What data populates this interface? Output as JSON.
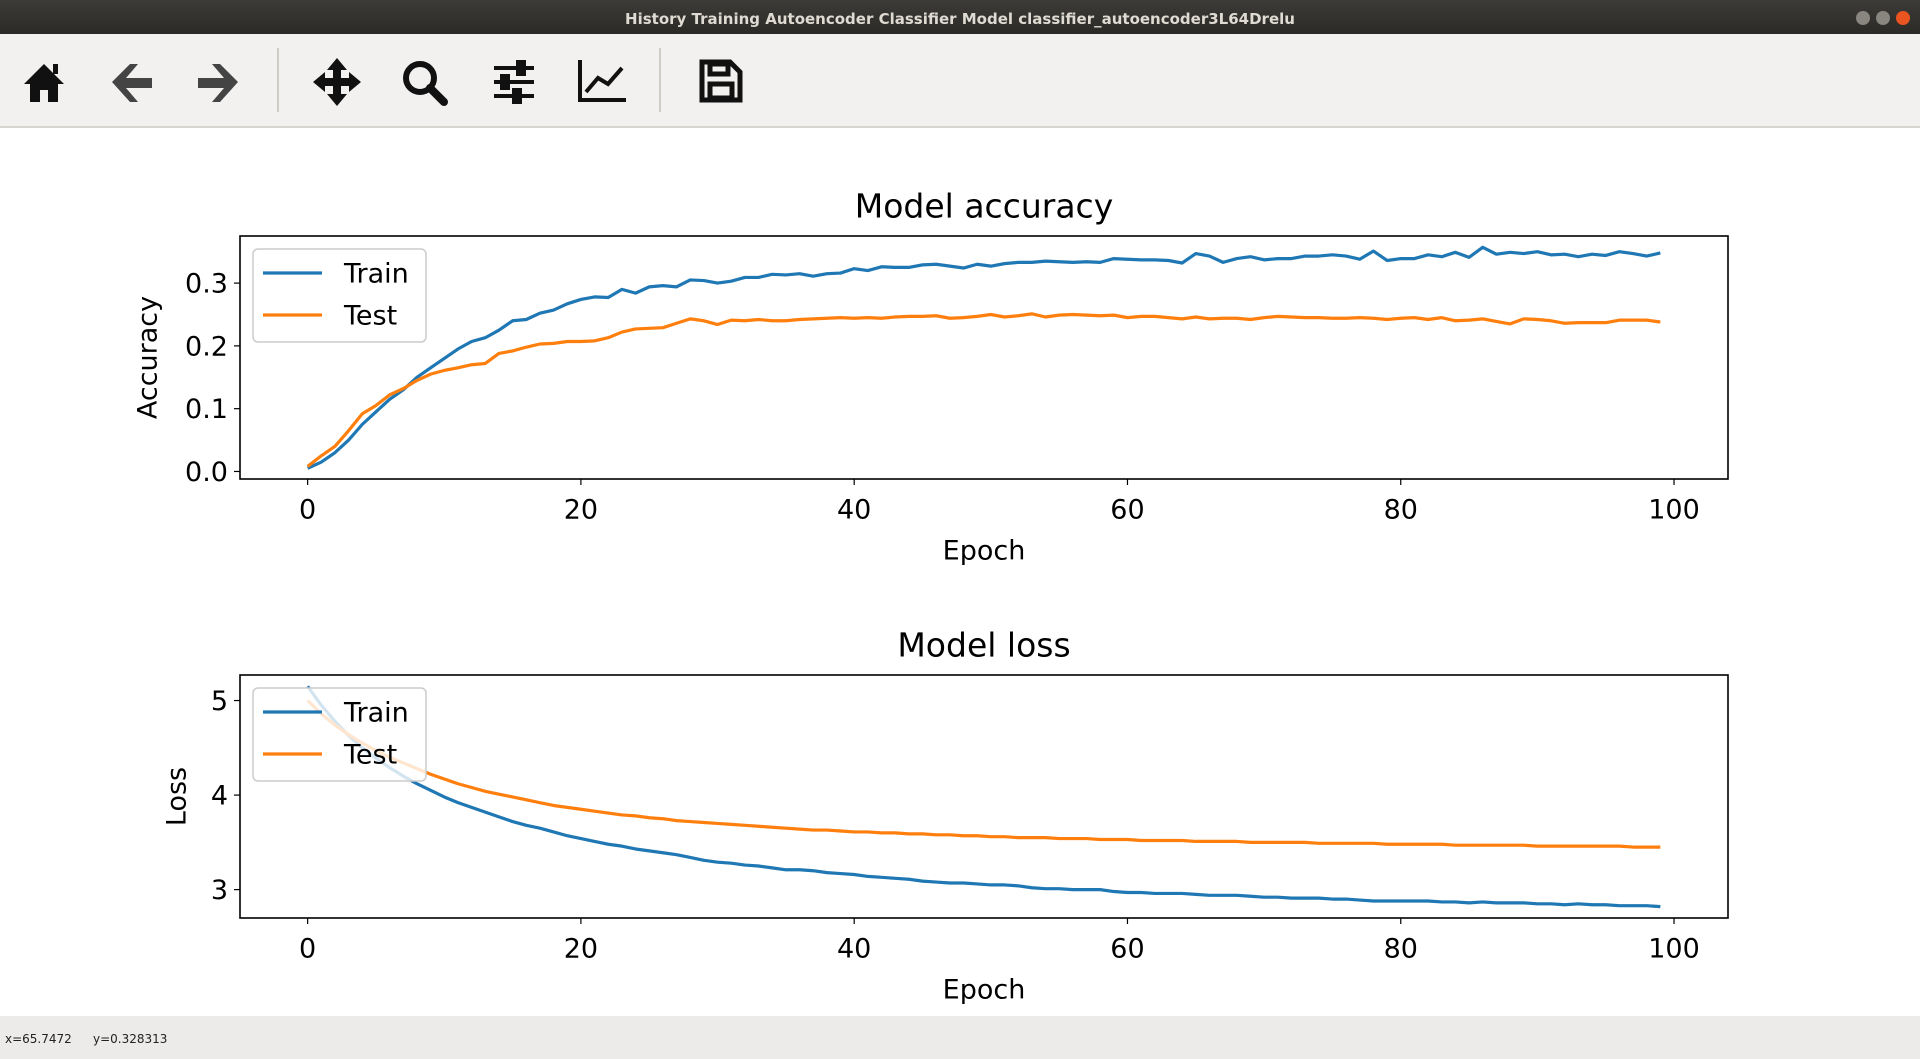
{
  "window": {
    "title": "History Training Autoencoder Classifier Model classifier_autoencoder3L64Drelu"
  },
  "status": {
    "x": "x=65.7472",
    "y": "y=0.328313"
  },
  "chart_data": [
    {
      "type": "line",
      "title": "Model accuracy",
      "xlabel": "Epoch",
      "ylabel": "Accuracy",
      "legend": "upper left",
      "x": [
        0,
        1,
        2,
        3,
        4,
        5,
        6,
        7,
        8,
        9,
        10,
        11,
        12,
        13,
        14,
        15,
        16,
        17,
        18,
        19,
        20,
        21,
        22,
        23,
        24,
        25,
        26,
        27,
        28,
        29,
        30,
        31,
        32,
        33,
        34,
        35,
        36,
        37,
        38,
        39,
        40,
        41,
        42,
        43,
        44,
        45,
        46,
        47,
        48,
        49,
        50,
        51,
        52,
        53,
        54,
        55,
        56,
        57,
        58,
        59,
        60,
        61,
        62,
        63,
        64,
        65,
        66,
        67,
        68,
        69,
        70,
        71,
        72,
        73,
        74,
        75,
        76,
        77,
        78,
        79,
        80,
        81,
        82,
        83,
        84,
        85,
        86,
        87,
        88,
        89,
        90,
        91,
        92,
        93,
        94,
        95,
        96,
        97,
        98,
        99
      ],
      "series": [
        {
          "name": "Train",
          "color": "#1f77b4",
          "values": [
            0.005,
            0.015,
            0.03,
            0.05,
            0.075,
            0.095,
            0.115,
            0.13,
            0.15,
            0.165,
            0.18,
            0.195,
            0.207,
            0.213,
            0.225,
            0.24,
            0.242,
            0.252,
            0.257,
            0.267,
            0.274,
            0.278,
            0.277,
            0.29,
            0.284,
            0.294,
            0.296,
            0.294,
            0.305,
            0.304,
            0.3,
            0.303,
            0.309,
            0.309,
            0.314,
            0.313,
            0.315,
            0.311,
            0.315,
            0.316,
            0.323,
            0.32,
            0.326,
            0.325,
            0.325,
            0.329,
            0.33,
            0.327,
            0.324,
            0.33,
            0.327,
            0.331,
            0.333,
            0.333,
            0.335,
            0.334,
            0.333,
            0.334,
            0.333,
            0.339,
            0.338,
            0.337,
            0.337,
            0.336,
            0.332,
            0.347,
            0.343,
            0.333,
            0.339,
            0.342,
            0.337,
            0.339,
            0.339,
            0.343,
            0.343,
            0.345,
            0.343,
            0.338,
            0.351,
            0.336,
            0.339,
            0.339,
            0.345,
            0.342,
            0.349,
            0.341,
            0.357,
            0.346,
            0.349,
            0.347,
            0.35,
            0.345,
            0.346,
            0.342,
            0.346,
            0.344,
            0.35,
            0.347,
            0.343,
            0.348
          ]
        },
        {
          "name": "Test",
          "color": "#ff7f0e",
          "values": [
            0.008,
            0.025,
            0.04,
            0.065,
            0.092,
            0.105,
            0.122,
            0.132,
            0.145,
            0.155,
            0.161,
            0.165,
            0.17,
            0.172,
            0.188,
            0.192,
            0.198,
            0.203,
            0.204,
            0.207,
            0.207,
            0.208,
            0.213,
            0.222,
            0.227,
            0.228,
            0.229,
            0.236,
            0.243,
            0.24,
            0.234,
            0.241,
            0.24,
            0.242,
            0.24,
            0.24,
            0.242,
            0.243,
            0.244,
            0.245,
            0.244,
            0.245,
            0.244,
            0.246,
            0.247,
            0.247,
            0.248,
            0.244,
            0.245,
            0.247,
            0.25,
            0.246,
            0.248,
            0.251,
            0.246,
            0.249,
            0.25,
            0.249,
            0.248,
            0.249,
            0.245,
            0.247,
            0.247,
            0.245,
            0.243,
            0.246,
            0.243,
            0.244,
            0.244,
            0.242,
            0.245,
            0.247,
            0.246,
            0.245,
            0.245,
            0.244,
            0.244,
            0.245,
            0.244,
            0.242,
            0.244,
            0.245,
            0.242,
            0.245,
            0.24,
            0.241,
            0.243,
            0.239,
            0.235,
            0.243,
            0.242,
            0.24,
            0.236,
            0.237,
            0.237,
            0.237,
            0.241,
            0.241,
            0.241,
            0.238
          ]
        }
      ],
      "xlim": [
        -4.95,
        103.95
      ],
      "ylim": [
        -0.012,
        0.375
      ],
      "xticks": [
        0,
        20,
        40,
        60,
        80,
        100
      ],
      "yticks": [
        {
          "value": 0,
          "label": "0.0"
        },
        0.1,
        0.2,
        0.3
      ]
    },
    {
      "type": "line",
      "title": "Model loss",
      "xlabel": "Epoch",
      "ylabel": "Loss",
      "legend": "upper left",
      "x": [
        0,
        1,
        2,
        3,
        4,
        5,
        6,
        7,
        8,
        9,
        10,
        11,
        12,
        13,
        14,
        15,
        16,
        17,
        18,
        19,
        20,
        21,
        22,
        23,
        24,
        25,
        26,
        27,
        28,
        29,
        30,
        31,
        32,
        33,
        34,
        35,
        36,
        37,
        38,
        39,
        40,
        41,
        42,
        43,
        44,
        45,
        46,
        47,
        48,
        49,
        50,
        51,
        52,
        53,
        54,
        55,
        56,
        57,
        58,
        59,
        60,
        61,
        62,
        63,
        64,
        65,
        66,
        67,
        68,
        69,
        70,
        71,
        72,
        73,
        74,
        75,
        76,
        77,
        78,
        79,
        80,
        81,
        82,
        83,
        84,
        85,
        86,
        87,
        88,
        89,
        90,
        91,
        92,
        93,
        94,
        95,
        96,
        97,
        98,
        99
      ],
      "series": [
        {
          "name": "Train",
          "color": "#1f77b4",
          "values": [
            5.15,
            4.95,
            4.78,
            4.63,
            4.5,
            4.39,
            4.29,
            4.2,
            4.12,
            4.05,
            3.98,
            3.92,
            3.87,
            3.82,
            3.77,
            3.72,
            3.68,
            3.65,
            3.61,
            3.57,
            3.54,
            3.51,
            3.48,
            3.46,
            3.43,
            3.41,
            3.39,
            3.37,
            3.34,
            3.31,
            3.29,
            3.28,
            3.26,
            3.25,
            3.23,
            3.21,
            3.21,
            3.2,
            3.18,
            3.17,
            3.16,
            3.14,
            3.13,
            3.12,
            3.11,
            3.09,
            3.08,
            3.07,
            3.07,
            3.06,
            3.05,
            3.05,
            3.04,
            3.02,
            3.01,
            3.01,
            3.0,
            3.0,
            3.0,
            2.98,
            2.97,
            2.97,
            2.96,
            2.96,
            2.96,
            2.95,
            2.94,
            2.94,
            2.94,
            2.93,
            2.92,
            2.92,
            2.91,
            2.91,
            2.91,
            2.9,
            2.9,
            2.89,
            2.88,
            2.88,
            2.88,
            2.88,
            2.88,
            2.87,
            2.87,
            2.86,
            2.87,
            2.86,
            2.86,
            2.86,
            2.85,
            2.85,
            2.84,
            2.85,
            2.84,
            2.84,
            2.83,
            2.83,
            2.83,
            2.82
          ]
        },
        {
          "name": "Test",
          "color": "#ff7f0e",
          "values": [
            5.0,
            4.86,
            4.74,
            4.64,
            4.55,
            4.47,
            4.4,
            4.34,
            4.28,
            4.22,
            4.17,
            4.12,
            4.08,
            4.04,
            4.01,
            3.98,
            3.95,
            3.92,
            3.89,
            3.87,
            3.85,
            3.83,
            3.81,
            3.79,
            3.78,
            3.76,
            3.75,
            3.73,
            3.72,
            3.71,
            3.7,
            3.69,
            3.68,
            3.67,
            3.66,
            3.65,
            3.64,
            3.63,
            3.63,
            3.62,
            3.61,
            3.61,
            3.6,
            3.6,
            3.59,
            3.59,
            3.58,
            3.58,
            3.57,
            3.57,
            3.56,
            3.56,
            3.55,
            3.55,
            3.55,
            3.54,
            3.54,
            3.54,
            3.53,
            3.53,
            3.53,
            3.52,
            3.52,
            3.52,
            3.52,
            3.51,
            3.51,
            3.51,
            3.51,
            3.5,
            3.5,
            3.5,
            3.5,
            3.5,
            3.49,
            3.49,
            3.49,
            3.49,
            3.49,
            3.48,
            3.48,
            3.48,
            3.48,
            3.48,
            3.47,
            3.47,
            3.47,
            3.47,
            3.47,
            3.47,
            3.46,
            3.46,
            3.46,
            3.46,
            3.46,
            3.46,
            3.46,
            3.45,
            3.45,
            3.45
          ]
        }
      ],
      "xlim": [
        -4.95,
        103.95
      ],
      "ylim": [
        2.7,
        5.27
      ],
      "xticks": [
        0,
        20,
        40,
        60,
        80,
        100
      ],
      "yticks": [
        3,
        4,
        5
      ]
    }
  ]
}
